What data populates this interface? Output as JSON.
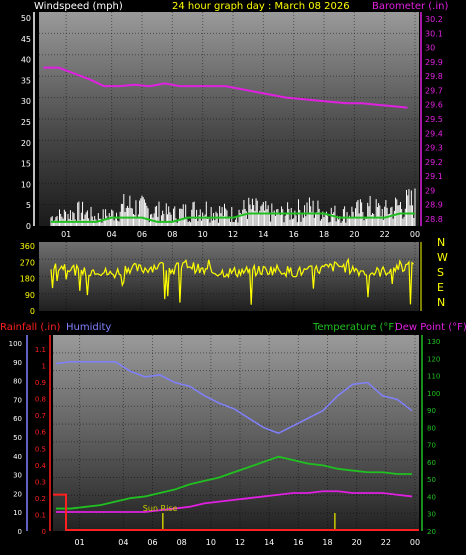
{
  "header": {
    "left_label": "Windspeed (mph)",
    "center_label": "24 hour graph day : March 08 2026",
    "right_label": "Barometer (.in)"
  },
  "bottom_header": {
    "rainfall_label": "Rainfall (.in)",
    "humidity_label": "Humidity",
    "temperature_label": "Temperature (°F)",
    "dewpoint_label": "Dew Point (°F)"
  },
  "colors": {
    "wind_axis": "#ffffff",
    "barometer": "#e020e0",
    "direction": "#ffff00",
    "rainfall": "#ff2020",
    "humidity": "#8080ff",
    "temperature": "#20c020",
    "dewpoint": "#e020e0",
    "windspeed": "#ffffff",
    "windgust": "#20c020",
    "sunrise": "#cccc00"
  },
  "chart_data": [
    {
      "type": "line",
      "panel": "wind-barometer",
      "x_tick_labels": [
        "01",
        "04",
        "06",
        "08",
        "10",
        "12",
        "14",
        "16",
        "18",
        "20",
        "22",
        "00"
      ],
      "x": [
        0,
        1,
        2,
        3,
        4,
        5,
        6,
        7,
        8,
        9,
        10,
        11,
        12,
        13,
        14,
        15,
        16,
        17,
        18,
        19,
        20,
        21,
        22,
        23,
        24
      ],
      "y_left_ticks": [
        "0",
        "5",
        "10",
        "15",
        "20",
        "25",
        "30",
        "35",
        "40",
        "45",
        "50"
      ],
      "y_left_range": [
        0,
        50
      ],
      "y_right_ticks": [
        "28.8",
        "28.9",
        "29",
        "29.1",
        "29.2",
        "29.3",
        "29.4",
        "29.5",
        "29.6",
        "29.7",
        "29.8",
        "29.9",
        "30",
        "30.1",
        "30.2"
      ],
      "y_right_range": [
        28.75,
        30.25
      ],
      "series": [
        {
          "name": "Barometer (.in)",
          "axis": "right",
          "values": [
            29.86,
            29.86,
            29.82,
            29.78,
            29.73,
            29.73,
            29.74,
            29.73,
            29.75,
            29.73,
            29.73,
            29.73,
            29.73,
            29.71,
            29.69,
            29.67,
            29.65,
            29.64,
            29.63,
            29.62,
            29.61,
            29.61,
            29.6,
            29.59,
            29.58
          ]
        },
        {
          "name": "Windspeed (mph)",
          "axis": "left",
          "values": [
            3,
            4,
            5,
            3,
            4,
            7,
            6,
            5,
            4,
            5,
            6,
            5,
            4,
            6,
            5,
            4,
            5,
            6,
            5,
            4,
            5,
            6,
            5,
            7,
            8
          ]
        },
        {
          "name": "Wind gust",
          "axis": "left",
          "values": [
            1,
            1,
            1,
            1,
            2,
            2,
            2,
            1,
            1,
            2,
            2,
            2,
            2,
            3,
            3,
            3,
            3,
            3,
            3,
            2,
            2,
            2,
            2,
            3,
            3
          ]
        }
      ]
    },
    {
      "type": "line",
      "panel": "wind-direction",
      "y_left_ticks": [
        "0",
        "90",
        "180",
        "270",
        "360"
      ],
      "y_left_range": [
        0,
        360
      ],
      "y_right_ticks": [
        "N",
        "W",
        "S",
        "E",
        "N"
      ],
      "x_tick_labels": [
        "01",
        "04",
        "06",
        "08",
        "10",
        "12",
        "14",
        "16",
        "18",
        "20",
        "22",
        "00"
      ],
      "x": [
        0,
        1,
        2,
        3,
        4,
        5,
        6,
        7,
        8,
        9,
        10,
        11,
        12,
        13,
        14,
        15,
        16,
        17,
        18,
        19,
        20,
        21,
        22,
        23,
        24
      ],
      "series": [
        {
          "name": "Wind direction",
          "values": [
            240,
            250,
            210,
            230,
            200,
            240,
            230,
            250,
            230,
            260,
            220,
            215,
            215,
            220,
            225,
            230,
            215,
            220,
            235,
            250,
            230,
            210,
            220,
            250,
            240
          ]
        }
      ]
    },
    {
      "type": "line",
      "panel": "temperature-humidity",
      "x_tick_labels": [
        "01",
        "04",
        "06",
        "08",
        "10",
        "12",
        "14",
        "16",
        "18",
        "20",
        "22",
        "00"
      ],
      "x": [
        0,
        1,
        2,
        3,
        4,
        5,
        6,
        7,
        8,
        9,
        10,
        11,
        12,
        13,
        14,
        15,
        16,
        17,
        18,
        19,
        20,
        21,
        22,
        23,
        24
      ],
      "y_left_outer_ticks": [
        "0",
        "10",
        "20",
        "30",
        "40",
        "50",
        "60",
        "70",
        "80",
        "90",
        "100"
      ],
      "y_left_outer_range": [
        0,
        100
      ],
      "y_left_inner_ticks": [
        "0",
        "0.1",
        "0.2",
        "0.3",
        "0.4",
        "0.5",
        "0.6",
        "0.7",
        "0.8",
        "0.9",
        "1",
        "1.1"
      ],
      "y_left_inner_range": [
        0,
        1.1
      ],
      "y_right_ticks": [
        "20",
        "30",
        "40",
        "50",
        "60",
        "70",
        "80",
        "90",
        "100",
        "110",
        "120",
        "130"
      ],
      "y_right_range": [
        20,
        130
      ],
      "series": [
        {
          "name": "Humidity",
          "axis": "left_outer",
          "values": [
            89,
            90,
            90,
            90,
            90,
            85,
            82,
            83,
            79,
            77,
            72,
            68,
            65,
            60,
            55,
            52,
            56,
            60,
            64,
            72,
            78,
            79,
            72,
            70,
            64
          ]
        },
        {
          "name": "Temperature (°F)",
          "axis": "right",
          "values": [
            33,
            33,
            34,
            35,
            37,
            39,
            40,
            42,
            44,
            47,
            49,
            51,
            54,
            57,
            60,
            63,
            61,
            59,
            58,
            56,
            55,
            54,
            54,
            53,
            53
          ]
        },
        {
          "name": "Dew Point (°F)",
          "axis": "right",
          "values": [
            31,
            31,
            31,
            31,
            31,
            31,
            31,
            32,
            33,
            34,
            36,
            37,
            38,
            39,
            40,
            41,
            42,
            42,
            43,
            43,
            42,
            42,
            42,
            41,
            40
          ]
        },
        {
          "name": "Rainfall (.in)",
          "axis": "left_inner",
          "values": [
            0.22,
            0.0,
            0,
            0,
            0,
            0,
            0,
            0,
            0,
            0,
            0,
            0,
            0,
            0,
            0,
            0,
            0,
            0,
            0,
            0,
            0,
            0,
            0,
            0,
            0
          ]
        }
      ],
      "annotations": [
        "Sun Rise"
      ]
    }
  ]
}
